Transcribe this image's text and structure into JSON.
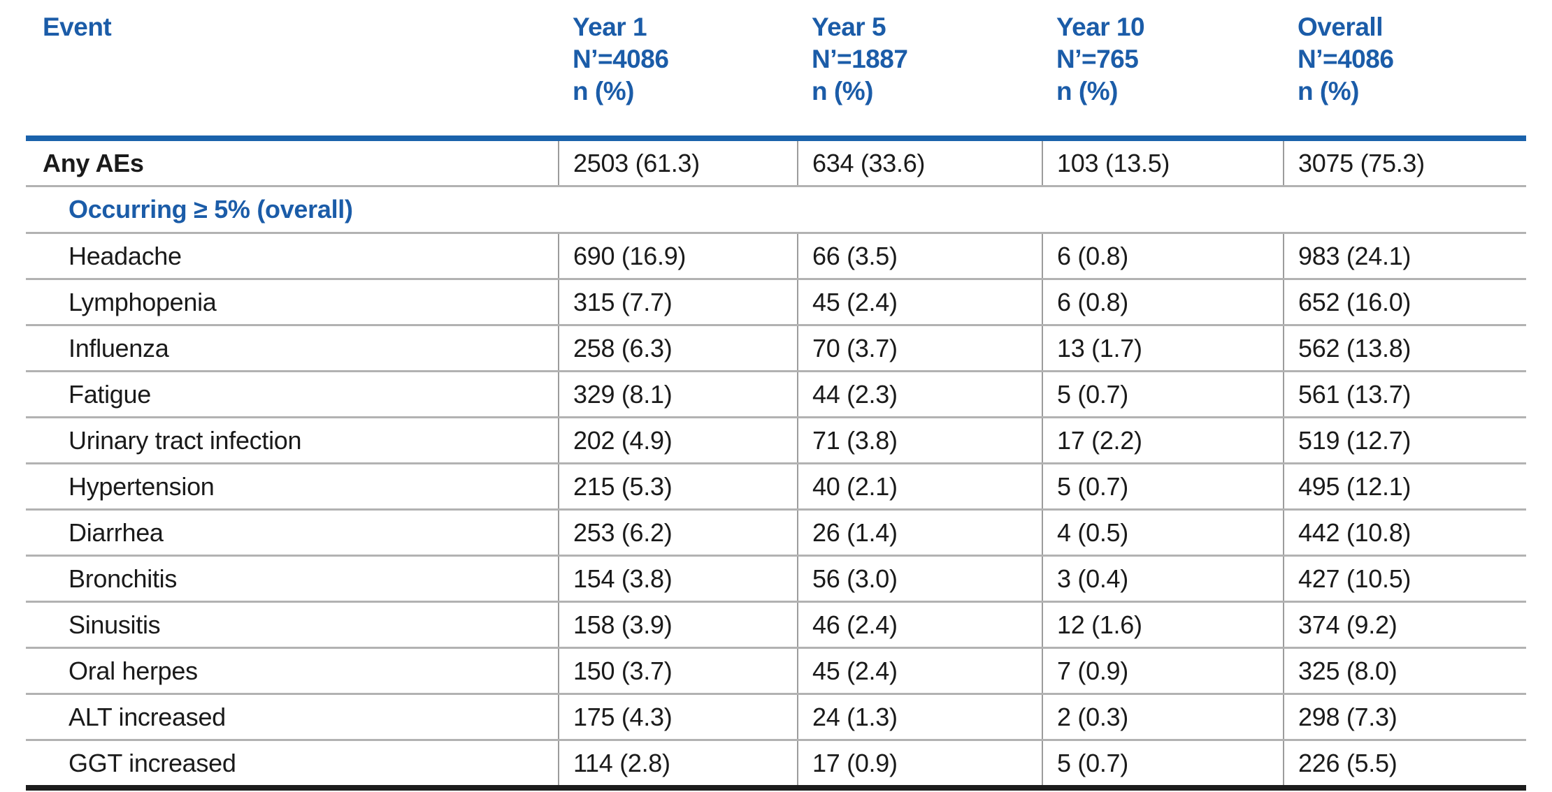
{
  "colors": {
    "accent_blue": "#1b5ca8",
    "header_rule_blue": "#1a62ab",
    "row_line_gray": "#b2b2b2",
    "column_divider_gray": "#9c9c9c",
    "text_black": "#1a1a1a",
    "bottom_rule_black": "#1c1c1c"
  },
  "table": {
    "header": {
      "event_label": "Event",
      "columns": [
        {
          "period": "Year 1",
          "n": "N’=4086",
          "metric": "n (%)"
        },
        {
          "period": "Year 5",
          "n": "N’=1887",
          "metric": "n (%)"
        },
        {
          "period": "Year 10",
          "n": "N’=765",
          "metric": "n (%)"
        },
        {
          "period": "Overall",
          "n": "N’=4086",
          "metric": "n (%)"
        }
      ]
    },
    "rows": [
      {
        "label": "Any AEs",
        "style": "bold",
        "values": [
          "2503 (61.3)",
          "634 (33.6)",
          "103 (13.5)",
          "3075 (75.3)"
        ]
      },
      {
        "label": "Occurring ≥ 5% (overall)",
        "style": "section",
        "values": []
      },
      {
        "label": "Headache",
        "style": "item",
        "values": [
          "690 (16.9)",
          "66 (3.5)",
          "6 (0.8)",
          "983 (24.1)"
        ]
      },
      {
        "label": "Lymphopenia",
        "style": "item",
        "values": [
          "315 (7.7)",
          "45 (2.4)",
          "6 (0.8)",
          "652 (16.0)"
        ]
      },
      {
        "label": "Influenza",
        "style": "item",
        "values": [
          "258 (6.3)",
          "70 (3.7)",
          "13 (1.7)",
          "562 (13.8)"
        ]
      },
      {
        "label": "Fatigue",
        "style": "item",
        "values": [
          "329 (8.1)",
          "44 (2.3)",
          "5 (0.7)",
          "561 (13.7)"
        ]
      },
      {
        "label": "Urinary tract infection",
        "style": "item",
        "values": [
          "202 (4.9)",
          "71 (3.8)",
          "17 (2.2)",
          "519 (12.7)"
        ]
      },
      {
        "label": "Hypertension",
        "style": "item",
        "values": [
          "215 (5.3)",
          "40 (2.1)",
          "5 (0.7)",
          "495 (12.1)"
        ]
      },
      {
        "label": "Diarrhea",
        "style": "item",
        "values": [
          "253 (6.2)",
          "26 (1.4)",
          "4 (0.5)",
          "442 (10.8)"
        ]
      },
      {
        "label": "Bronchitis",
        "style": "item",
        "values": [
          "154 (3.8)",
          "56 (3.0)",
          "3 (0.4)",
          "427 (10.5)"
        ]
      },
      {
        "label": "Sinusitis",
        "style": "item",
        "values": [
          "158 (3.9)",
          "46 (2.4)",
          "12 (1.6)",
          "374 (9.2)"
        ]
      },
      {
        "label": "Oral herpes",
        "style": "item",
        "values": [
          "150 (3.7)",
          "45 (2.4)",
          "7 (0.9)",
          "325 (8.0)"
        ]
      },
      {
        "label": "ALT increased",
        "style": "item",
        "values": [
          "175 (4.3)",
          "24 (1.3)",
          "2 (0.3)",
          "298 (7.3)"
        ]
      },
      {
        "label": "GGT increased",
        "style": "item",
        "values": [
          "114 (2.8)",
          "17 (0.9)",
          "5 (0.7)",
          "226 (5.5)"
        ]
      }
    ]
  },
  "chart_data": {
    "type": "table",
    "title": "",
    "columns": [
      "Event",
      "Year 1 N’=4086 n (%)",
      "Year 5 N’=1887 n (%)",
      "Year 10 N’=765 n (%)",
      "Overall N’=4086 n (%)"
    ],
    "rows": [
      [
        "Any AEs",
        "2503 (61.3)",
        "634 (33.6)",
        "103 (13.5)",
        "3075 (75.3)"
      ],
      [
        "Occurring ≥ 5% (overall)",
        "",
        "",
        "",
        ""
      ],
      [
        "Headache",
        "690 (16.9)",
        "66 (3.5)",
        "6 (0.8)",
        "983 (24.1)"
      ],
      [
        "Lymphopenia",
        "315 (7.7)",
        "45 (2.4)",
        "6 (0.8)",
        "652 (16.0)"
      ],
      [
        "Influenza",
        "258 (6.3)",
        "70 (3.7)",
        "13 (1.7)",
        "562 (13.8)"
      ],
      [
        "Fatigue",
        "329 (8.1)",
        "44 (2.3)",
        "5 (0.7)",
        "561 (13.7)"
      ],
      [
        "Urinary tract infection",
        "202 (4.9)",
        "71 (3.8)",
        "17 (2.2)",
        "519 (12.7)"
      ],
      [
        "Hypertension",
        "215 (5.3)",
        "40 (2.1)",
        "5 (0.7)",
        "495 (12.1)"
      ],
      [
        "Diarrhea",
        "253 (6.2)",
        "26 (1.4)",
        "4 (0.5)",
        "442 (10.8)"
      ],
      [
        "Bronchitis",
        "154 (3.8)",
        "56 (3.0)",
        "3 (0.4)",
        "427 (10.5)"
      ],
      [
        "Sinusitis",
        "158 (3.9)",
        "46 (2.4)",
        "12 (1.6)",
        "374 (9.2)"
      ],
      [
        "Oral herpes",
        "150 (3.7)",
        "45 (2.4)",
        "7 (0.9)",
        "325 (8.0)"
      ],
      [
        "ALT increased",
        "175 (4.3)",
        "24 (1.3)",
        "2 (0.3)",
        "298 (7.3)"
      ],
      [
        "GGT increased",
        "114 (2.8)",
        "17 (0.9)",
        "5 (0.7)",
        "226 (5.5)"
      ]
    ]
  }
}
